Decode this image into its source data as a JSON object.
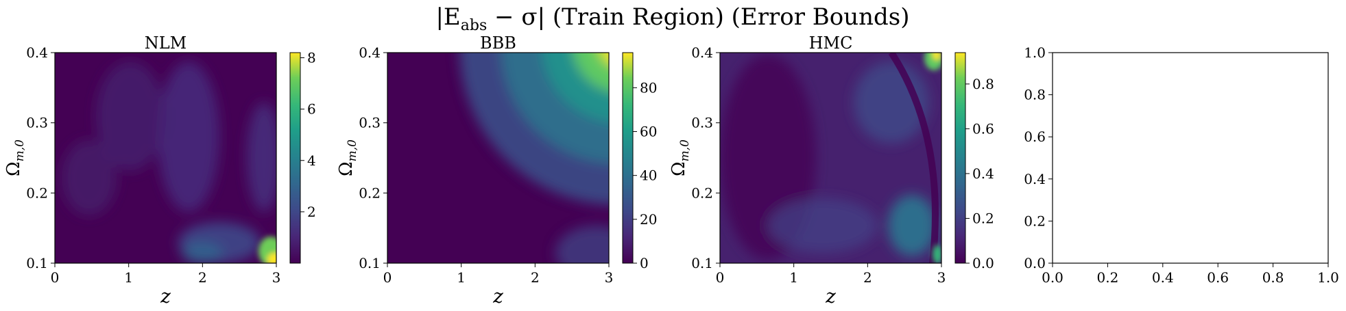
{
  "figure": {
    "title_parts": {
      "pre": "|E",
      "sub": "abs",
      "mid": " − σ| (Train Region) (Error Bounds)"
    }
  },
  "chart_data": [
    {
      "type": "heatmap",
      "title": "NLM",
      "xlabel": "z",
      "ylabel": "Ω",
      "ylabel_sub": "m,0",
      "xlim": [
        0,
        3
      ],
      "ylim": [
        0.1,
        0.4
      ],
      "xticks": [
        "0",
        "1",
        "2",
        "3"
      ],
      "yticks": [
        "0.1",
        "0.2",
        "0.3",
        "0.4"
      ],
      "colorbar": {
        "min": 0,
        "max": 8.2,
        "ticks": [
          "2",
          "4",
          "6",
          "8"
        ],
        "colormap": "viridis"
      }
    },
    {
      "type": "heatmap",
      "title": "BBB",
      "xlabel": "z",
      "ylabel": "Ω",
      "ylabel_sub": "m,0",
      "xlim": [
        0,
        3
      ],
      "ylim": [
        0.1,
        0.4
      ],
      "xticks": [
        "0",
        "1",
        "2",
        "3"
      ],
      "yticks": [
        "0.1",
        "0.2",
        "0.3",
        "0.4"
      ],
      "colorbar": {
        "min": 0,
        "max": 96,
        "ticks": [
          "0",
          "20",
          "40",
          "60",
          "80"
        ],
        "colormap": "viridis"
      }
    },
    {
      "type": "heatmap",
      "title": "HMC",
      "xlabel": "z",
      "ylabel": "Ω",
      "ylabel_sub": "m,0",
      "xlim": [
        0,
        3
      ],
      "ylim": [
        0.1,
        0.4
      ],
      "xticks": [
        "0",
        "1",
        "2",
        "3"
      ],
      "yticks": [
        "0.1",
        "0.2",
        "0.3",
        "0.4"
      ],
      "colorbar": {
        "min": 0,
        "max": 0.94,
        "ticks": [
          "0.0",
          "0.2",
          "0.4",
          "0.6",
          "0.8"
        ],
        "colormap": "viridis"
      }
    },
    {
      "type": "empty",
      "xlim": [
        0,
        1
      ],
      "ylim": [
        0,
        1
      ],
      "xticks": [
        "0.0",
        "0.2",
        "0.4",
        "0.6",
        "0.8",
        "1.0"
      ],
      "yticks": [
        "0.0",
        "0.2",
        "0.4",
        "0.6",
        "0.8",
        "1.0"
      ]
    }
  ],
  "colors": {
    "viridis_low": "#440154",
    "viridis_mid": "#21908d",
    "viridis_high": "#fde725"
  }
}
